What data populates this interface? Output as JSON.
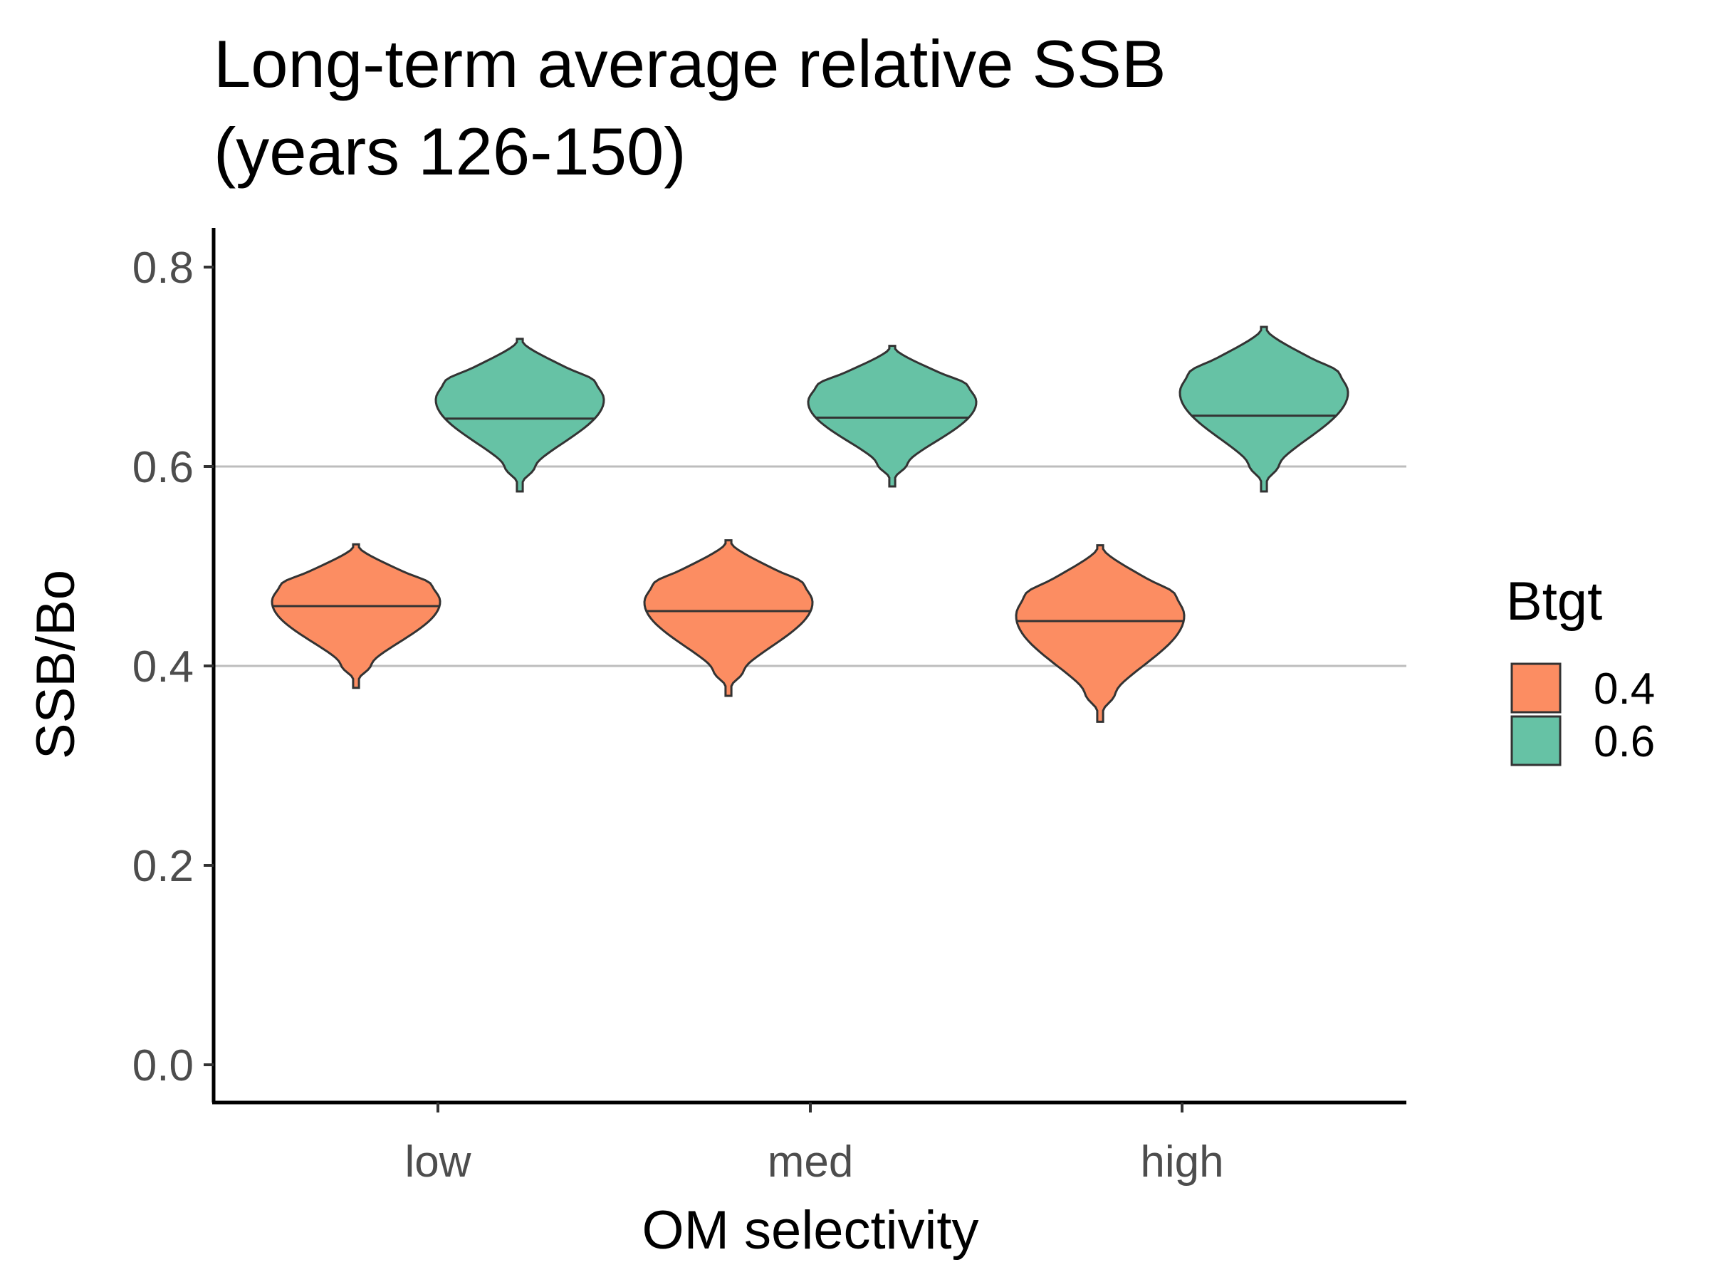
{
  "chart_data": {
    "type": "violin",
    "title_lines": [
      "Long-term average relative SSB",
      "(years 126-150)"
    ],
    "xlabel": "OM selectivity",
    "ylabel": "SSB/Bo",
    "categories": [
      "low",
      "med",
      "high"
    ],
    "ylim": [
      -0.04,
      0.83
    ],
    "yticks": [
      0.0,
      0.2,
      0.4,
      0.6,
      0.8
    ],
    "ytick_labels": [
      "0.0",
      "0.2",
      "0.4",
      "0.6",
      "0.8"
    ],
    "grid_y": [
      0.4,
      0.6
    ],
    "legend": {
      "title": "Btgt",
      "position": "right",
      "items": [
        {
          "label": "0.4",
          "color": "#fc8d62"
        },
        {
          "label": "0.6",
          "color": "#66c2a5"
        }
      ]
    },
    "series": [
      {
        "name": "0.4",
        "color": "#fc8d62",
        "violins": [
          {
            "category": "low",
            "min": 0.378,
            "max": 0.522,
            "median": 0.46
          },
          {
            "category": "med",
            "min": 0.37,
            "max": 0.526,
            "median": 0.455
          },
          {
            "category": "high",
            "min": 0.344,
            "max": 0.521,
            "median": 0.445
          }
        ]
      },
      {
        "name": "0.6",
        "color": "#66c2a5",
        "violins": [
          {
            "category": "low",
            "min": 0.575,
            "max": 0.728,
            "median": 0.648
          },
          {
            "category": "med",
            "min": 0.58,
            "max": 0.721,
            "median": 0.649
          },
          {
            "category": "high",
            "min": 0.575,
            "max": 0.74,
            "median": 0.651
          }
        ]
      }
    ]
  }
}
